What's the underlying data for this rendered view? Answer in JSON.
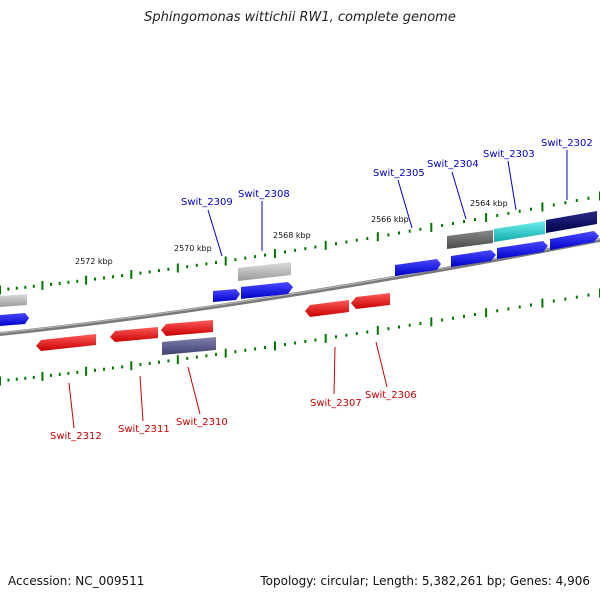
{
  "title": "Sphingomonas wittichii RW1, complete genome",
  "footer": {
    "accession": "Accession: NC_009511",
    "summary": "Topology: circular; Length: 5,382,261 bp; Genes: 4,906"
  },
  "colors": {
    "backbone": "#808080",
    "tick": "#007700",
    "forward_gene": "#0000ee",
    "reverse_gene": "#ee0000",
    "gray_feature": "#a8a8a8",
    "dark_gray_feature": "#606060",
    "cyan_feature": "#20c8c8",
    "navy_feature": "#000066",
    "purple_feature": "#555588"
  },
  "scale_labels": [
    "2572 kbp",
    "2570 kbp",
    "2568 kbp",
    "2566 kbp",
    "2564 kbp"
  ],
  "genes_top": [
    "Swit_2309",
    "Swit_2308",
    "Swit_2305",
    "Swit_2304",
    "Swit_2303",
    "Swit_2302"
  ],
  "genes_bottom": [
    "Swit_2312",
    "Swit_2311",
    "Swit_2310",
    "Swit_2307",
    "Swit_2306"
  ]
}
